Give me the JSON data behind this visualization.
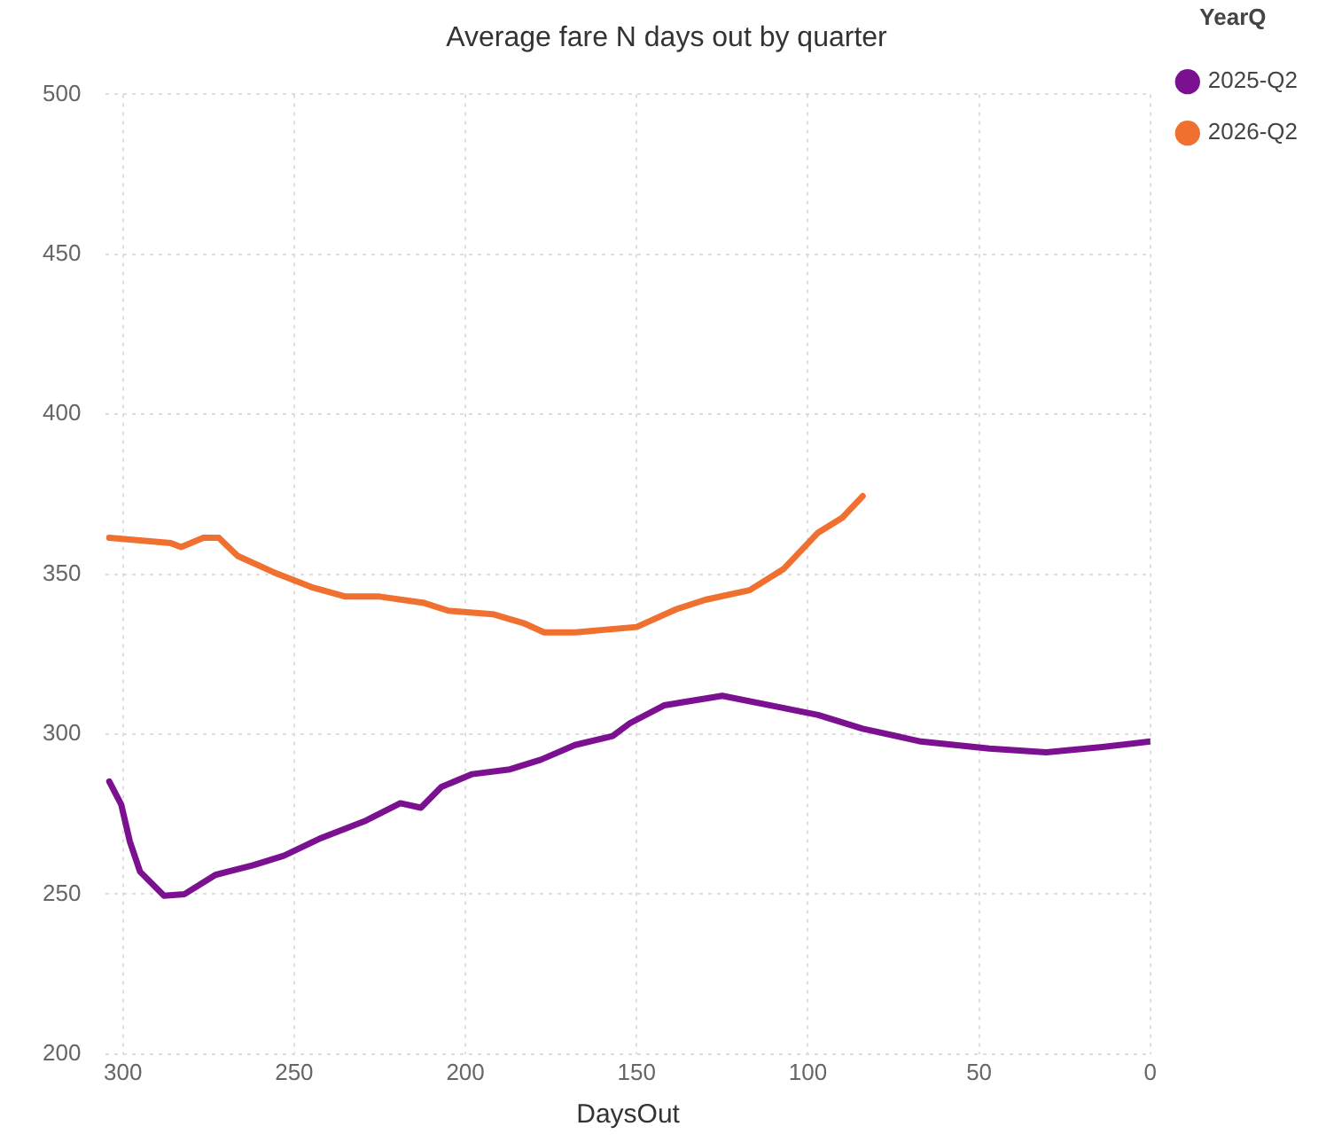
{
  "chart_data": {
    "type": "line",
    "title": "Average fare N days out by quarter",
    "xlabel": "DaysOut",
    "legend_title": "YearQ",
    "legend": "top right",
    "grid": true,
    "line_style": "solid",
    "marker": "none",
    "xlim": [
      305,
      0
    ],
    "xticks": [
      300,
      250,
      200,
      150,
      100,
      50,
      0
    ],
    "ylim": [
      200,
      500
    ],
    "yticks": [
      200,
      250,
      300,
      350,
      400,
      450,
      500
    ],
    "series": [
      {
        "name": "2025-Q2",
        "color": "#7b1090",
        "x": [
          304,
          300.5,
          298,
          295,
          288,
          282,
          273,
          262,
          253,
          242,
          229,
          219,
          213,
          207,
          198,
          187,
          178,
          168,
          157,
          152,
          142,
          125,
          108.6,
          97,
          84,
          67,
          47,
          30.4,
          14,
          0
        ],
        "values": [
          285.2,
          278,
          266.5,
          257,
          249.5,
          250,
          256,
          259,
          262,
          267.6,
          273,
          278.4,
          277,
          283.5,
          287.5,
          289,
          292,
          296.6,
          299.4,
          303.4,
          309,
          312,
          308.5,
          306,
          301.7,
          297.7,
          295.5,
          294.3,
          296,
          297.7
        ]
      },
      {
        "name": "2026-Q2",
        "color": "#f07030",
        "x": [
          304,
          286,
          283,
          276.5,
          272,
          266.5,
          256,
          245,
          235,
          225,
          212,
          205,
          192,
          183,
          177,
          168,
          150,
          138.5,
          130,
          117,
          107,
          97,
          90,
          84
        ],
        "values": [
          361.4,
          359.7,
          358.5,
          361.4,
          361.4,
          355.7,
          350.6,
          346,
          343,
          343,
          341,
          338.6,
          337.5,
          334.7,
          331.8,
          331.8,
          333.5,
          339,
          342,
          345,
          351.7,
          363,
          367.6,
          374.4
        ]
      }
    ]
  }
}
